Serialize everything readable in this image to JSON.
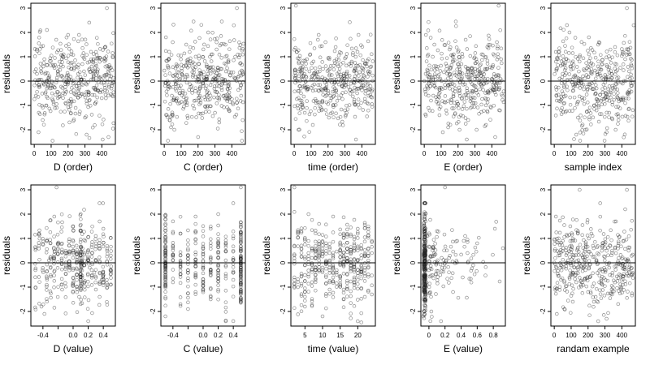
{
  "chart_data": [
    {
      "type": "scatter",
      "xlabel": "D (order)",
      "ylabel": "residuals",
      "xticks": [
        0,
        100,
        200,
        300,
        400
      ],
      "yticks": [
        -2,
        -1,
        0,
        1,
        2,
        3
      ],
      "xlim": [
        -20,
        480
      ],
      "ylim": [
        -2.6,
        3.2
      ],
      "hline": 0,
      "distribution": "order",
      "x": [
        10,
        40,
        75,
        110,
        150,
        185,
        220,
        260,
        300,
        340,
        380,
        420,
        455,
        25,
        60,
        95,
        130,
        170,
        205,
        245,
        285,
        325,
        365,
        405,
        440,
        15,
        50,
        90,
        140,
        200,
        250,
        310,
        360,
        430
      ],
      "y": [
        -0.6,
        0.4,
        2.1,
        -0.2,
        0.8,
        -0.9,
        1.1,
        0.3,
        -1.5,
        0.6,
        -0.4,
        1.4,
        0.2,
        -2.1,
        0.9,
        -0.3,
        1.7,
        -0.5,
        0.1,
        -1.1,
        0.7,
        -0.8,
        1.2,
        -2.4,
        0.5,
        1.3,
        -1.6,
        0.2,
        -0.7,
        1.9,
        -0.2,
        -2.2,
        0.4,
        3.0
      ]
    },
    {
      "type": "scatter",
      "xlabel": "C (order)",
      "ylabel": "residuals",
      "xticks": [
        0,
        100,
        200,
        300,
        400
      ],
      "yticks": [
        -2,
        -1,
        0,
        1,
        2,
        3
      ],
      "xlim": [
        -20,
        480
      ],
      "ylim": [
        -2.6,
        3.2
      ],
      "hline": 0,
      "distribution": "order",
      "x": [
        10,
        40,
        75,
        110,
        150,
        185,
        220,
        260,
        300,
        340,
        380,
        420,
        455,
        25,
        60,
        95,
        130,
        170,
        205,
        245,
        285,
        325,
        365,
        405,
        440,
        15,
        50,
        90,
        140,
        200,
        250,
        310,
        360,
        430
      ],
      "y": [
        1.8,
        -1.9,
        0.6,
        -0.4,
        1.2,
        -0.8,
        0.3,
        2.0,
        -1.3,
        0.5,
        -0.2,
        1.0,
        -0.6,
        0.9,
        -2.0,
        0.1,
        1.5,
        -1.0,
        0.7,
        -0.3,
        1.1,
        -1.7,
        0.4,
        -0.9,
        0.2,
        -1.4,
        1.6,
        -0.5,
        0.8,
        -2.3,
        0.6,
        1.3,
        -0.1,
        3.0
      ]
    },
    {
      "type": "scatter",
      "xlabel": "time (order)",
      "ylabel": "residuals",
      "xticks": [
        0,
        100,
        200,
        300,
        400
      ],
      "yticks": [
        -2,
        -1,
        0,
        1,
        2,
        3
      ],
      "xlim": [
        -20,
        480
      ],
      "ylim": [
        -2.6,
        3.2
      ],
      "hline": 0,
      "distribution": "order",
      "x": [
        10,
        40,
        75,
        110,
        150,
        185,
        220,
        260,
        300,
        340,
        380,
        420,
        455,
        25,
        60,
        95,
        130,
        170,
        205,
        245,
        285,
        325,
        365,
        405,
        440,
        15,
        50,
        90,
        140,
        200,
        250,
        310,
        360,
        430
      ],
      "y": [
        3.1,
        -0.5,
        0.9,
        -1.8,
        0.4,
        1.6,
        -0.7,
        0.2,
        -1.2,
        0.8,
        1.9,
        -0.3,
        0.6,
        -2.0,
        0.3,
        1.1,
        -0.9,
        0.5,
        -1.5,
        1.4,
        -0.2,
        0.7,
        -2.4,
        0.1,
        -0.6,
        1.2,
        -1.1,
        0.4,
        1.7,
        -0.4,
        0.9,
        -1.3,
        0.2,
        0.6
      ]
    },
    {
      "type": "scatter",
      "xlabel": "E (order)",
      "ylabel": "residuals",
      "xticks": [
        0,
        100,
        200,
        300,
        400
      ],
      "yticks": [
        -2,
        -1,
        0,
        1,
        2,
        3
      ],
      "xlim": [
        -20,
        480
      ],
      "ylim": [
        -2.6,
        3.2
      ],
      "hline": 0,
      "distribution": "order",
      "x": [
        10,
        40,
        75,
        110,
        150,
        185,
        220,
        260,
        300,
        340,
        380,
        420,
        455,
        25,
        60,
        95,
        130,
        170,
        205,
        245,
        285,
        325,
        365,
        405,
        440,
        15,
        50,
        90,
        140,
        200,
        250,
        310,
        360,
        430
      ],
      "y": [
        1.9,
        -0.8,
        0.5,
        -2.1,
        1.3,
        -0.3,
        0.7,
        -1.6,
        0.2,
        1.1,
        -0.5,
        -2.3,
        0.9,
        -0.6,
        1.5,
        0.1,
        -1.2,
        0.8,
        -0.4,
        1.7,
        -0.9,
        0.3,
        -1.8,
        0.6,
        3.1,
        -0.2,
        1.0,
        -1.4,
        0.4,
        1.2,
        -0.7,
        -2.0,
        0.5,
        1.6
      ]
    },
    {
      "type": "scatter",
      "xlabel": "sample index",
      "ylabel": "residuals",
      "xticks": [
        0,
        100,
        200,
        300,
        400
      ],
      "yticks": [
        -2,
        -1,
        0,
        1,
        2,
        3
      ],
      "xlim": [
        -20,
        480
      ],
      "ylim": [
        -2.6,
        3.2
      ],
      "hline": 0,
      "distribution": "order",
      "x": [
        10,
        40,
        75,
        110,
        150,
        185,
        220,
        260,
        300,
        340,
        380,
        420,
        455,
        25,
        60,
        95,
        130,
        170,
        205,
        245,
        285,
        325,
        365,
        405,
        440,
        15,
        50,
        90,
        140,
        200,
        250,
        310,
        360,
        430
      ],
      "y": [
        0.8,
        -1.2,
        2.3,
        -0.4,
        1.0,
        -2.0,
        0.5,
        1.5,
        -0.7,
        0.3,
        -1.6,
        0.9,
        -0.2,
        1.2,
        -0.9,
        0.6,
        -2.2,
        0.2,
        1.8,
        -0.5,
        0.7,
        -1.3,
        0.4,
        -0.1,
        1.1,
        -0.8,
        0.3,
        2.0,
        -1.5,
        0.6,
        -0.3,
        -2.1,
        1.4,
        3.0
      ]
    },
    {
      "type": "scatter",
      "xlabel": "D (value)",
      "ylabel": "residuals",
      "xticks": [
        -0.4,
        -0.2,
        0.0,
        0.2,
        0.4
      ],
      "xticklabels": [
        "-0.4",
        "",
        "0.0",
        "0.2",
        "0.4"
      ],
      "yticks": [
        -2,
        -1,
        0,
        1,
        2,
        3
      ],
      "xlim": [
        -0.56,
        0.56
      ],
      "ylim": [
        -2.6,
        3.2
      ],
      "hline": 0,
      "distribution": "clustered-center",
      "x": [
        -0.5,
        -0.45,
        -0.38,
        -0.3,
        -0.22,
        -0.15,
        -0.08,
        0.0,
        0.08,
        0.1,
        0.12,
        0.16,
        0.22,
        0.3,
        0.38,
        0.45,
        0.5,
        -0.42,
        -0.25,
        -0.05,
        0.05,
        0.1,
        0.2,
        0.35,
        -0.32,
        0.28
      ],
      "y": [
        -0.3,
        1.2,
        -2.1,
        0.8,
        3.1,
        -0.9,
        0.4,
        1.5,
        -1.4,
        0.2,
        -0.6,
        0.9,
        -0.2,
        1.1,
        -0.7,
        0.5,
        0.3,
        -1.8,
        1.9,
        -0.1,
        -1.0,
        1.3,
        -2.4,
        0.6,
        0.1,
        -0.4
      ]
    },
    {
      "type": "scatter",
      "xlabel": "C (value)",
      "ylabel": "residuals",
      "xticks": [
        -0.4,
        -0.2,
        0.0,
        0.2,
        0.4
      ],
      "xticklabels": [
        "-0.4",
        "",
        "0.0",
        "0.2",
        "0.4"
      ],
      "yticks": [
        -2,
        -1,
        0,
        1,
        2,
        3
      ],
      "xlim": [
        -0.56,
        0.56
      ],
      "ylim": [
        -2.6,
        3.2
      ],
      "hline": 0,
      "distribution": "vertical-strips",
      "x": [
        -0.5,
        -0.5,
        -0.5,
        -0.4,
        -0.3,
        -0.2,
        -0.1,
        0.0,
        0.1,
        0.2,
        0.3,
        0.4,
        0.5,
        0.5,
        0.5,
        -0.5,
        -0.3,
        -0.1,
        0.1,
        0.3,
        0.5,
        0.0,
        0.2,
        -0.2
      ],
      "y": [
        1.8,
        -2.2,
        0.4,
        -0.8,
        1.2,
        -0.3,
        1.9,
        0.6,
        -1.5,
        0.2,
        -2.4,
        1.0,
        3.1,
        -0.9,
        0.5,
        -0.5,
        -1.7,
        0.8,
        1.4,
        0.1,
        -0.2,
        -1.1,
        2.0,
        -1.9
      ]
    },
    {
      "type": "scatter",
      "xlabel": "time (value)",
      "ylabel": "residuals",
      "xticks": [
        5,
        10,
        15,
        20
      ],
      "yticks": [
        -2,
        -1,
        0,
        1,
        2,
        3
      ],
      "xlim": [
        1,
        25
      ],
      "ylim": [
        -2.6,
        3.2
      ],
      "hline": 0,
      "distribution": "vertical-strips",
      "x": [
        2,
        2,
        4,
        5,
        7,
        8,
        9,
        10,
        11,
        12,
        12,
        13,
        14,
        15,
        16,
        17,
        18,
        19,
        20,
        21,
        22,
        23,
        24,
        24,
        3,
        6,
        12,
        20
      ],
      "y": [
        3.1,
        -0.6,
        1.3,
        -1.8,
        0.5,
        -0.2,
        1.6,
        -2.2,
        0.8,
        0.4,
        -1.1,
        1.9,
        -0.4,
        0.7,
        -1.5,
        0.2,
        1.1,
        -0.9,
        -2.4,
        0.6,
        -0.3,
        1.4,
        -1.3,
        0.9,
        -1.0,
        2.0,
        0.1,
        -0.7
      ]
    },
    {
      "type": "scatter",
      "xlabel": "E (value)",
      "ylabel": "residuals",
      "xticks": [
        0.0,
        0.2,
        0.4,
        0.6,
        0.8
      ],
      "yticks": [
        -2,
        -1,
        0,
        1,
        2,
        3
      ],
      "xlim": [
        -0.1,
        0.95
      ],
      "ylim": [
        -2.6,
        3.2
      ],
      "hline": 0,
      "distribution": "left-dense",
      "x": [
        -0.07,
        -0.06,
        -0.05,
        -0.05,
        -0.04,
        -0.03,
        -0.02,
        0.0,
        0.03,
        0.06,
        0.1,
        0.14,
        0.2,
        0.25,
        0.3,
        0.35,
        0.42,
        0.48,
        0.55,
        0.6,
        0.82,
        0.92,
        0.15,
        0.45
      ],
      "y": [
        -2.2,
        2.0,
        -1.5,
        1.3,
        0.5,
        -0.8,
        1.1,
        -0.3,
        -2.0,
        0.6,
        1.3,
        -0.5,
        3.1,
        0.2,
        -1.2,
        0.9,
        -0.6,
        0.4,
        -0.1,
        0.8,
        1.4,
        0.6,
        -2.4,
        1.1
      ]
    },
    {
      "type": "scatter",
      "xlabel": "randam example",
      "ylabel": "residuals",
      "xticks": [
        0,
        100,
        200,
        300,
        400
      ],
      "yticks": [
        -2,
        -1,
        0,
        1,
        2,
        3
      ],
      "xlim": [
        -20,
        480
      ],
      "ylim": [
        -2.6,
        3.2
      ],
      "hline": 0,
      "distribution": "order",
      "x": [
        10,
        40,
        75,
        110,
        150,
        185,
        220,
        260,
        300,
        340,
        380,
        420,
        455,
        25,
        60,
        95,
        130,
        170,
        205,
        245,
        285,
        325,
        365,
        405,
        440,
        15,
        50,
        90,
        140,
        200,
        250,
        310,
        360,
        430
      ],
      "y": [
        1.9,
        -0.7,
        0.4,
        -1.6,
        3.0,
        -0.3,
        1.2,
        -2.4,
        0.6,
        -1.1,
        0.8,
        2.2,
        -0.5,
        0.3,
        -1.9,
        1.5,
        -0.8,
        0.2,
        1.0,
        -1.4,
        0.7,
        -0.2,
        1.7,
        -0.9,
        0.5,
        -2.1,
        0.9,
        -0.6,
        1.3,
        -1.2,
        0.1,
        -2.3,
        0.6,
        3.0
      ]
    }
  ]
}
